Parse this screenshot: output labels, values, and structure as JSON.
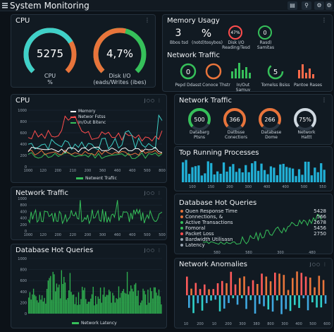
{
  "app": {
    "title": "System Monitoring"
  },
  "toolbar": {
    "btn1": "⚙",
    "btn2": "⚲",
    "btn3": "⚙",
    "btn4": "▤"
  },
  "cpu_gauges": {
    "title": "CPU",
    "g1": {
      "value": "5275",
      "label": "CPU\n%",
      "fraction": 0.72,
      "color": "#3fd0c8",
      "track_color": "#e8743b"
    },
    "g2": {
      "value": "4,7%",
      "label": "Disk I/O\n(eads/Writes (ibes)",
      "fraction": 0.55,
      "color": "#e8743b",
      "track_color": "#36c05a"
    }
  },
  "memory": {
    "title": "Memory Usagy",
    "items": [
      {
        "value": "3",
        "label": "Bbos tsd"
      },
      {
        "value": "%",
        "label": "(notd)tosybos)"
      },
      {
        "value": "47%",
        "label": "Disk I/O\nReading/Tesd"
      },
      {
        "value": "0",
        "label": "Rasd)\nSamitas"
      }
    ]
  },
  "network_top": {
    "title": "Network Traffic",
    "items": [
      {
        "value": "0",
        "label": "Pepd Ddasst"
      },
      {
        "value": "",
        "label": "Conoce Thstr"
      },
      {
        "value": "",
        "label": "In/Out Samuy"
      },
      {
        "value": "5",
        "label": "Tomelss Bsiss"
      },
      {
        "value": "",
        "label": "Pantoe Rases"
      }
    ]
  },
  "cpu_chart": {
    "title": "CPU",
    "controls": "J○○ ⋮",
    "legend": [
      {
        "name": "Memory",
        "color": "#ffffff"
      },
      {
        "name": "Networ Fstss",
        "color": "#ff4d4d"
      },
      {
        "name": "In/Out Bitenc",
        "color": "#36c05a"
      }
    ],
    "bottom_legend": "Netwent Trafiic",
    "y_ticks": [
      "1000",
      "800",
      "600",
      "400",
      "200",
      "0"
    ],
    "x_ticks": [
      "1000",
      "120",
      "200",
      "210",
      "200",
      "360",
      "460",
      "400",
      "500",
      "800"
    ]
  },
  "network_gauges": {
    "title": "Network Traffic",
    "items": [
      {
        "value": "500",
        "label": "Databarg\nPtsns",
        "color": "#36c05a",
        "fraction": 0.7
      },
      {
        "value": "366",
        "label": "Datbsse\nConectiors",
        "color": "#e8743b",
        "fraction": 0.75
      },
      {
        "value": "266",
        "label": "Database\nDome",
        "color": "#e8743b",
        "fraction": 0.7
      },
      {
        "value": "75%",
        "label": "Network\nHattt",
        "color": "#cfd8e0",
        "fraction": 0.75
      }
    ]
  },
  "top_processes": {
    "title": "Top Running Processes",
    "x_ticks": [
      "100",
      "150",
      "200",
      "300",
      "400",
      "400",
      "500",
      "550"
    ]
  },
  "network_traffic_2": {
    "title": "Network Traffic",
    "controls": "J○○ ⋮",
    "y_ticks": [
      "1000",
      "800",
      "400",
      "400",
      "200",
      "0"
    ],
    "x_ticks": [
      "1000",
      "120",
      "200",
      "220",
      "200",
      "300",
      "460",
      "400",
      "500",
      "500"
    ]
  },
  "db_queries_right": {
    "title": "Database Hot Queries",
    "rows": [
      {
        "name": "Quen Response Time",
        "value": "5428",
        "color": "#e8743b"
      },
      {
        "name": "Connections, &",
        "value": "566",
        "color": "#e8743b"
      },
      {
        "name": "Active Transactions",
        "value": "2678",
        "color": "#36c05a"
      },
      {
        "name": "Fomoral",
        "value": "5456",
        "color": "#36c05a"
      },
      {
        "name": "Packet Loss",
        "value": "2750",
        "color": "#ff4d4d"
      },
      {
        "name": "Bardwidth Utilisasn",
        "value": "",
        "color": "#9aa6b2"
      },
      {
        "name": "Latency",
        "value": "",
        "color": "#9aa6b2"
      }
    ],
    "x_ticks": [
      "580",
      "580",
      "300",
      "480"
    ]
  },
  "db_queries_left": {
    "title": "Database Hot Queries",
    "controls": "J○○ ⋮",
    "y_ticks": [
      "1000",
      "800",
      "600",
      "400",
      "200",
      "0"
    ],
    "legend": "Network Latency"
  },
  "anomalies": {
    "title": "Network Anomalies",
    "controls": "J○○ ⋮",
    "x_ticks": [
      "10",
      "200",
      "10",
      "200",
      "300",
      "380",
      "800",
      "300",
      "400",
      "500",
      "600"
    ]
  }
}
